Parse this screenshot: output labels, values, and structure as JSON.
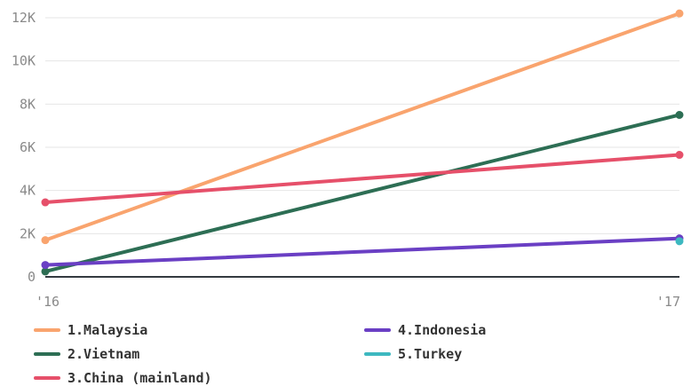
{
  "chart_data": {
    "type": "line",
    "x": [
      "'16",
      "'17"
    ],
    "ylim": [
      0,
      12500
    ],
    "yticks": [
      {
        "value": 0,
        "label": "0"
      },
      {
        "value": 2000,
        "label": "2K"
      },
      {
        "value": 4000,
        "label": "4K"
      },
      {
        "value": 6000,
        "label": "6K"
      },
      {
        "value": 8000,
        "label": "8K"
      },
      {
        "value": 10000,
        "label": "10K"
      },
      {
        "value": 12000,
        "label": "12K"
      }
    ],
    "grid": true,
    "legend_position": "bottom",
    "series": [
      {
        "name": "1.Malaysia",
        "color": "#f9a46e",
        "values": [
          1700,
          12200
        ]
      },
      {
        "name": "2.Vietnam",
        "color": "#2d6e54",
        "values": [
          250,
          7500
        ]
      },
      {
        "name": "3.China (mainland)",
        "color": "#e6506a",
        "values": [
          3450,
          5650
        ]
      },
      {
        "name": "4.Indonesia",
        "color": "#6a3fc4",
        "values": [
          550,
          1780
        ]
      },
      {
        "name": "5.Turkey",
        "color": "#3db8c0",
        "values": [
          null,
          1650
        ]
      }
    ]
  }
}
